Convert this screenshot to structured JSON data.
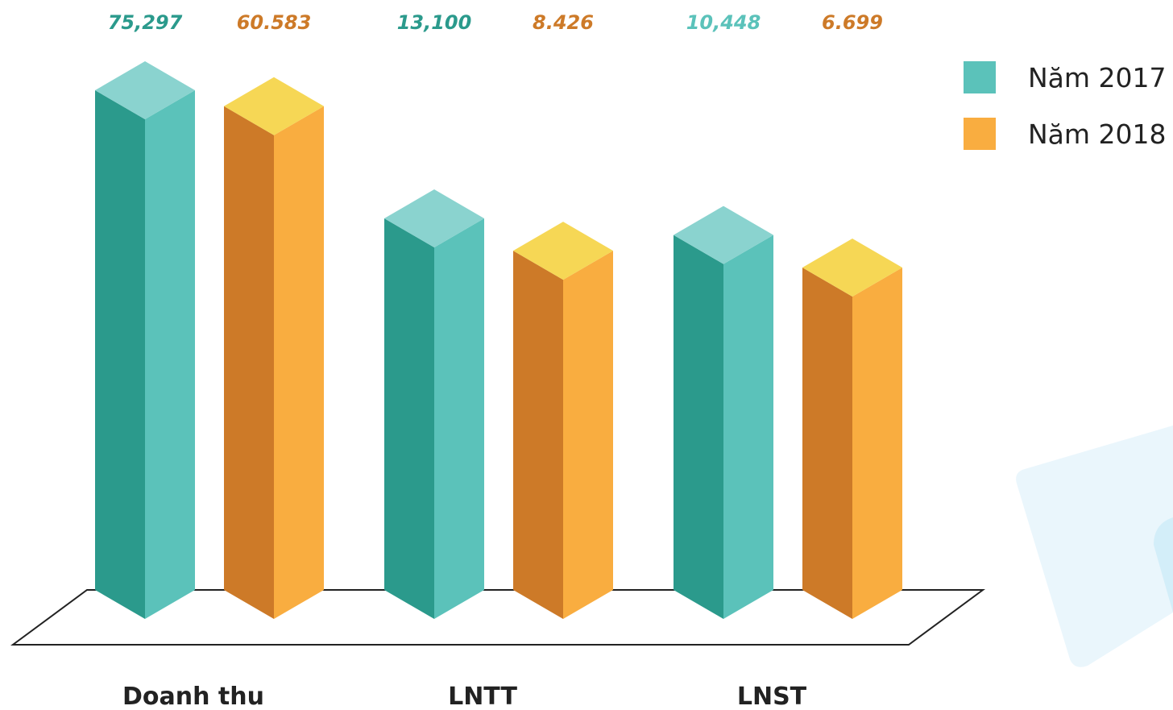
{
  "chart_data": {
    "type": "bar",
    "categories": [
      "Doanh thu",
      "LNTT",
      "LNST"
    ],
    "series": [
      {
        "name": "Năm 2017",
        "values": [
          75297,
          13100,
          10448
        ],
        "labels": [
          "75,297",
          "13,100",
          "10,448"
        ],
        "color": "#5BC2BA",
        "colors": {
          "front": "#5BC2BA",
          "side": "#2B9A8C",
          "top": "#8AD3CF"
        },
        "label_colors": [
          "#2B9A8C",
          "#2B9A8C",
          "#5BC2BA"
        ]
      },
      {
        "name": "Năm 2018",
        "values": [
          60583,
          8426,
          6699
        ],
        "labels": [
          "60.583",
          "8.426",
          "6.699"
        ],
        "color": "#F9AD40",
        "colors": {
          "front": "#F9AD40",
          "side": "#CD7A28",
          "top": "#F6D755"
        },
        "label_colors": [
          "#CD7A28",
          "#CD7A28",
          "#CD7A28"
        ]
      }
    ],
    "title": "",
    "xlabel": "",
    "ylabel": "",
    "grid": false,
    "legend": "top-right"
  },
  "decor": {
    "background_card_color": "#EAF6FC",
    "background_card_accent": "#D3EEF9"
  }
}
